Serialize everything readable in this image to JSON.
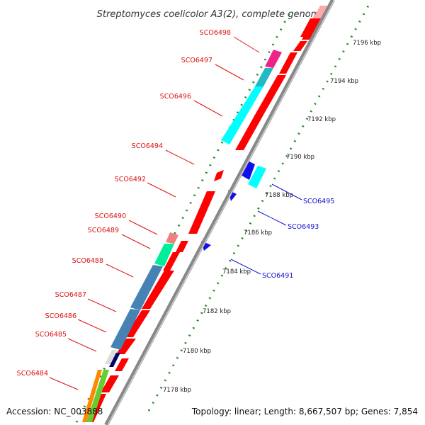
{
  "title": "Streptomyces coelicolor A3(2), complete genome",
  "footer": {
    "accession": "Accession: NC_003888",
    "topology": "Topology: linear; Length: 8,667,507 bp; Genes: 7,854"
  },
  "colors": {
    "forward_label": "#dd1111",
    "reverse_label": "#1111cc",
    "backbone": "#888888",
    "tick_marks": "#228b22",
    "gene_red": "#ff0000",
    "gene_blue": "#1010ee"
  },
  "ticks": [
    {
      "kbp": 7178,
      "label": "7178 kbp"
    },
    {
      "kbp": 7180,
      "label": "7180 kbp"
    },
    {
      "kbp": 7182,
      "label": "7182 kbp"
    },
    {
      "kbp": 7184,
      "label": "7184 kbp"
    },
    {
      "kbp": 7186,
      "label": "7186 kbp"
    },
    {
      "kbp": 7188,
      "label": "7188 kbp"
    },
    {
      "kbp": 7190,
      "label": "7190 kbp"
    },
    {
      "kbp": 7192,
      "label": "7192 kbp"
    },
    {
      "kbp": 7194,
      "label": "7194 kbp"
    },
    {
      "kbp": 7196,
      "label": "7196 kbp"
    }
  ],
  "forward_labels": [
    {
      "id": "SCO6498",
      "text": "SCO6498"
    },
    {
      "id": "SCO6497",
      "text": "SCO6497"
    },
    {
      "id": "SCO6496",
      "text": "SCO6496"
    },
    {
      "id": "SCO6494",
      "text": "SCO6494"
    },
    {
      "id": "SCO6492",
      "text": "SCO6492"
    },
    {
      "id": "SCO6490",
      "text": "SCO6490"
    },
    {
      "id": "SCO6489",
      "text": "SCO6489"
    },
    {
      "id": "SCO6488",
      "text": "SCO6488"
    },
    {
      "id": "SCO6487",
      "text": "SCO6487"
    },
    {
      "id": "SCO6486",
      "text": "SCO6486"
    },
    {
      "id": "SCO6485",
      "text": "SCO6485"
    },
    {
      "id": "SCO6484",
      "text": "SCO6484"
    }
  ],
  "reverse_labels": [
    {
      "id": "SCO6495",
      "text": "SCO6495"
    },
    {
      "id": "SCO6493",
      "text": "SCO6493"
    },
    {
      "id": "SCO6491",
      "text": "SCO6491"
    }
  ]
}
